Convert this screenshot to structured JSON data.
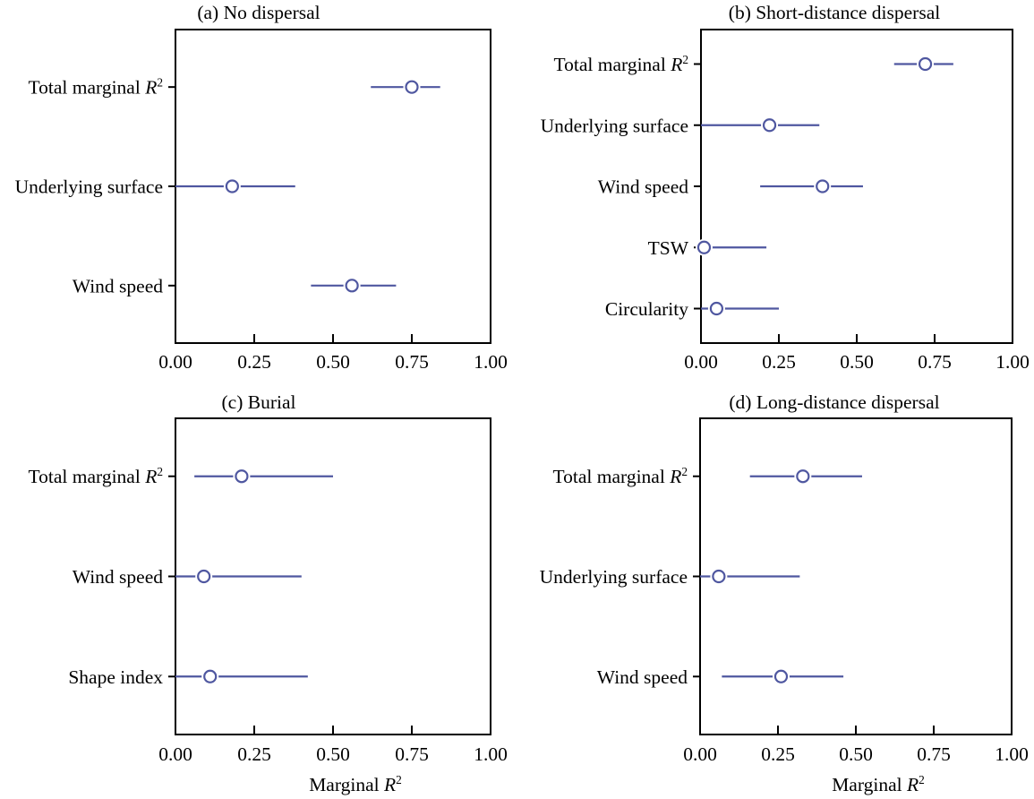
{
  "figure": {
    "background": "#ffffff",
    "axis_color": "#000000",
    "text_color": "#000000",
    "series_color": "#4f57a0",
    "marker_fill": "#ffffff",
    "xlabel": "Marginal R²"
  },
  "chart_data": [
    {
      "id": "a",
      "type": "scatter",
      "subtype": "dot-with-interval",
      "title": "(a) No dispersal",
      "orientation": "horizontal",
      "categories": [
        "Total marginal R²",
        "Underlying surface",
        "Wind speed"
      ],
      "values": [
        0.75,
        0.18,
        0.56
      ],
      "ci_low": [
        0.62,
        0.0,
        0.43
      ],
      "ci_high": [
        0.84,
        0.38,
        0.7
      ],
      "xlim": [
        0,
        1
      ],
      "xticks": [
        "0.00",
        "0.25",
        "0.50",
        "0.75",
        "1.00"
      ],
      "xlabel": "",
      "grid": "off",
      "legend": "none"
    },
    {
      "id": "b",
      "type": "scatter",
      "subtype": "dot-with-interval",
      "title": "(b) Short-distance dispersal",
      "orientation": "horizontal",
      "categories": [
        "Total marginal R²",
        "Underlying surface",
        "Wind speed",
        "TSW",
        "Circularity"
      ],
      "values": [
        0.72,
        0.22,
        0.39,
        0.01,
        0.05
      ],
      "ci_low": [
        0.62,
        0.0,
        0.19,
        0.0,
        0.0
      ],
      "ci_high": [
        0.81,
        0.38,
        0.52,
        0.21,
        0.25
      ],
      "xlim": [
        0,
        1
      ],
      "xticks": [
        "0.00",
        "0.25",
        "0.50",
        "0.75",
        "1.00"
      ],
      "xlabel": "",
      "grid": "off",
      "legend": "none"
    },
    {
      "id": "c",
      "type": "scatter",
      "subtype": "dot-with-interval",
      "title": "(c) Burial",
      "orientation": "horizontal",
      "categories": [
        "Total marginal R²",
        "Wind speed",
        "Shape index"
      ],
      "values": [
        0.21,
        0.09,
        0.11
      ],
      "ci_low": [
        0.06,
        0.0,
        0.0
      ],
      "ci_high": [
        0.5,
        0.4,
        0.42
      ],
      "xlim": [
        0,
        1
      ],
      "xticks": [
        "0.00",
        "0.25",
        "0.50",
        "0.75",
        "1.00"
      ],
      "xlabel": "Marginal R²",
      "grid": "off",
      "legend": "none"
    },
    {
      "id": "d",
      "type": "scatter",
      "subtype": "dot-with-interval",
      "title": "(d) Long-distance dispersal",
      "orientation": "horizontal",
      "categories": [
        "Total marginal R²",
        "Underlying surface",
        "Wind speed"
      ],
      "values": [
        0.33,
        0.06,
        0.26
      ],
      "ci_low": [
        0.16,
        0.0,
        0.07
      ],
      "ci_high": [
        0.52,
        0.32,
        0.46
      ],
      "xlim": [
        0,
        1
      ],
      "xticks": [
        "0.00",
        "0.25",
        "0.50",
        "0.75",
        "1.00"
      ],
      "xlabel": "Marginal R²",
      "grid": "off",
      "legend": "none"
    }
  ]
}
